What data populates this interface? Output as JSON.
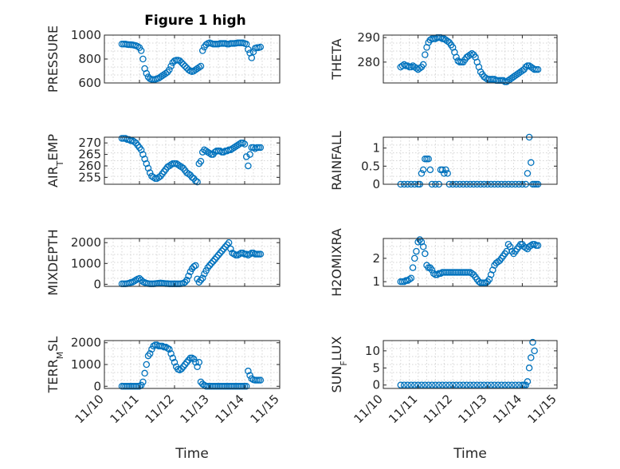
{
  "figure": {
    "title": "Figure 1 high",
    "xlabel": "Time",
    "colors": {
      "series": "#0072BD",
      "axis": "#262626",
      "grid": "#d5d5d5"
    }
  },
  "chart_data": [
    {
      "type": "scatter",
      "ylabel": "PRESSURE",
      "ylim": [
        600,
        1000
      ],
      "xlim": [
        0,
        5
      ],
      "grid": true,
      "yticks": [
        600,
        800,
        1000
      ],
      "yticklabels": [
        "600",
        "800",
        "1000"
      ],
      "xticks": [],
      "x": [
        0.5,
        0.55,
        0.6,
        0.65,
        0.7,
        0.75,
        0.8,
        0.85,
        0.9,
        0.95,
        1.0,
        1.05,
        1.1,
        1.15,
        1.2,
        1.25,
        1.3,
        1.35,
        1.4,
        1.45,
        1.5,
        1.55,
        1.6,
        1.65,
        1.7,
        1.75,
        1.8,
        1.85,
        1.9,
        1.95,
        2.0,
        2.05,
        2.1,
        2.15,
        2.2,
        2.25,
        2.3,
        2.35,
        2.4,
        2.45,
        2.5,
        2.55,
        2.6,
        2.65,
        2.7,
        2.75,
        2.8,
        2.85,
        2.9,
        2.95,
        3.0,
        3.05,
        3.1,
        3.15,
        3.2,
        3.25,
        3.3,
        3.35,
        3.4,
        3.45,
        3.5,
        3.55,
        3.6,
        3.65,
        3.7,
        3.75,
        3.8,
        3.85,
        3.9,
        3.95,
        4.0,
        4.05,
        4.1,
        4.15,
        4.2,
        4.25,
        4.3,
        4.35,
        4.4,
        4.45
      ],
      "y": [
        925,
        925,
        925,
        922,
        920,
        920,
        918,
        915,
        912,
        905,
        895,
        870,
        800,
        720,
        680,
        650,
        635,
        630,
        628,
        630,
        635,
        640,
        650,
        660,
        670,
        680,
        690,
        710,
        740,
        770,
        785,
        790,
        790,
        785,
        770,
        755,
        740,
        725,
        710,
        700,
        695,
        700,
        710,
        720,
        730,
        740,
        870,
        900,
        920,
        930,
        935,
        930,
        925,
        925,
        925,
        925,
        930,
        930,
        930,
        930,
        925,
        925,
        930,
        930,
        930,
        932,
        935,
        935,
        935,
        935,
        930,
        925,
        880,
        850,
        810,
        860,
        890,
        895,
        895,
        900
      ]
    },
    {
      "type": "scatter",
      "ylabel": "THETA",
      "ylim": [
        271.5,
        291
      ],
      "xlim": [
        0,
        5
      ],
      "grid": true,
      "yticks": [
        280,
        290
      ],
      "yticklabels": [
        "280",
        "290"
      ],
      "xticks": [],
      "x": [
        0.5,
        0.55,
        0.6,
        0.65,
        0.7,
        0.75,
        0.8,
        0.85,
        0.9,
        0.95,
        1.0,
        1.05,
        1.1,
        1.15,
        1.2,
        1.25,
        1.3,
        1.35,
        1.4,
        1.45,
        1.5,
        1.55,
        1.6,
        1.65,
        1.7,
        1.75,
        1.8,
        1.85,
        1.9,
        1.95,
        2.0,
        2.05,
        2.1,
        2.15,
        2.2,
        2.25,
        2.3,
        2.35,
        2.4,
        2.45,
        2.5,
        2.55,
        2.6,
        2.65,
        2.7,
        2.75,
        2.8,
        2.85,
        2.9,
        2.95,
        3.0,
        3.05,
        3.1,
        3.15,
        3.2,
        3.25,
        3.3,
        3.35,
        3.4,
        3.45,
        3.5,
        3.55,
        3.6,
        3.65,
        3.7,
        3.75,
        3.8,
        3.85,
        3.9,
        3.95,
        4.0,
        4.05,
        4.1,
        4.15,
        4.2,
        4.25,
        4.3,
        4.35,
        4.4,
        4.45
      ],
      "y": [
        278,
        278.5,
        279,
        278.5,
        278.5,
        278,
        278,
        278.5,
        278,
        277.5,
        277,
        277.5,
        278,
        279,
        283,
        286,
        288,
        289,
        289.5,
        289.5,
        289.5,
        290,
        290,
        290,
        289.5,
        289.5,
        289,
        288.5,
        288,
        287,
        286,
        284,
        282,
        280.5,
        280,
        280,
        280,
        281,
        282,
        282.5,
        283,
        283.5,
        283,
        282,
        280,
        278,
        276,
        275,
        274,
        273.5,
        273,
        273,
        273,
        273,
        273,
        272.5,
        272.5,
        272.5,
        272.5,
        272.5,
        272,
        272,
        272.5,
        273,
        273.5,
        274,
        274.5,
        275,
        275.5,
        276,
        276.5,
        277,
        278,
        278.5,
        278.5,
        278,
        277.5,
        277,
        277,
        277
      ]
    },
    {
      "type": "scatter",
      "ylabel": "AIR_TEMP",
      "ylim": [
        252,
        272.5
      ],
      "xlim": [
        0,
        5
      ],
      "grid": true,
      "yticks": [
        255,
        260,
        265,
        270
      ],
      "yticklabels": [
        "255",
        "260",
        "265",
        "270"
      ],
      "xticks": [],
      "x": [
        0.5,
        0.55,
        0.6,
        0.65,
        0.7,
        0.75,
        0.8,
        0.85,
        0.9,
        0.95,
        1.0,
        1.05,
        1.1,
        1.15,
        1.2,
        1.25,
        1.3,
        1.35,
        1.4,
        1.45,
        1.5,
        1.55,
        1.6,
        1.65,
        1.7,
        1.75,
        1.8,
        1.85,
        1.9,
        1.95,
        2.0,
        2.05,
        2.1,
        2.15,
        2.2,
        2.25,
        2.3,
        2.35,
        2.4,
        2.45,
        2.5,
        2.55,
        2.6,
        2.65,
        2.7,
        2.75,
        2.8,
        2.85,
        2.9,
        2.95,
        3.0,
        3.05,
        3.1,
        3.15,
        3.2,
        3.25,
        3.3,
        3.35,
        3.4,
        3.45,
        3.5,
        3.55,
        3.6,
        3.65,
        3.7,
        3.75,
        3.8,
        3.85,
        3.9,
        3.95,
        4.0,
        4.05,
        4.1,
        4.15,
        4.2,
        4.25,
        4.3,
        4.35,
        4.4,
        4.45
      ],
      "y": [
        272,
        272,
        272,
        271.5,
        271.5,
        271,
        271,
        270.5,
        270,
        269,
        268,
        267,
        265,
        263,
        261,
        259,
        257,
        255.5,
        255,
        254.5,
        254.5,
        255,
        255.5,
        256.5,
        257.5,
        258.5,
        259.5,
        260,
        260.5,
        261,
        261,
        261,
        260.5,
        260,
        259.5,
        259,
        258,
        257,
        256.5,
        256,
        255,
        254.5,
        253.5,
        253,
        261,
        262,
        266,
        267,
        266.5,
        266,
        265.5,
        265,
        265,
        266,
        266.5,
        266.5,
        266.5,
        266,
        266,
        266.5,
        266.5,
        267,
        267,
        267.5,
        268,
        268.5,
        269,
        269.5,
        270,
        270,
        269.5,
        264,
        260,
        265,
        268,
        268,
        267.5,
        268,
        268,
        268
      ]
    },
    {
      "type": "scatter",
      "ylabel": "RAINFALL",
      "ylim": [
        0,
        1.3
      ],
      "xlim": [
        0,
        5
      ],
      "grid": true,
      "yticks": [
        0,
        0.5,
        1
      ],
      "yticklabels": [
        "0",
        "0.5",
        "1"
      ],
      "xticks": [],
      "x": [
        0.5,
        0.6,
        0.7,
        0.8,
        0.9,
        1.0,
        1.05,
        1.1,
        1.15,
        1.2,
        1.25,
        1.3,
        1.35,
        1.4,
        1.5,
        1.6,
        1.65,
        1.7,
        1.75,
        1.8,
        1.85,
        1.9,
        2.0,
        2.1,
        2.2,
        2.3,
        2.4,
        2.5,
        2.6,
        2.7,
        2.8,
        2.9,
        3.0,
        3.1,
        3.2,
        3.3,
        3.4,
        3.5,
        3.6,
        3.7,
        3.8,
        3.9,
        4.0,
        4.1,
        4.15,
        4.2,
        4.25,
        4.3,
        4.35,
        4.4,
        4.45
      ],
      "y": [
        0,
        0,
        0,
        0,
        0,
        0,
        0,
        0.3,
        0.4,
        0.7,
        0.7,
        0.7,
        0.4,
        0,
        0,
        0,
        0.4,
        0.4,
        0.3,
        0.4,
        0.3,
        0,
        0,
        0,
        0,
        0,
        0,
        0,
        0,
        0,
        0,
        0,
        0,
        0,
        0,
        0,
        0,
        0,
        0,
        0,
        0,
        0,
        0,
        0,
        0.3,
        1.3,
        0.6,
        0,
        0,
        0,
        0
      ]
    },
    {
      "type": "scatter",
      "ylabel": "MIXDEPTH",
      "ylim": [
        -100,
        2200
      ],
      "xlim": [
        0,
        5
      ],
      "grid": true,
      "yticks": [
        0,
        1000,
        2000
      ],
      "yticklabels": [
        "0",
        "1000",
        "2000"
      ],
      "xticks": [],
      "x": [
        0.5,
        0.55,
        0.6,
        0.65,
        0.7,
        0.75,
        0.8,
        0.85,
        0.9,
        0.95,
        1.0,
        1.05,
        1.1,
        1.15,
        1.2,
        1.25,
        1.3,
        1.35,
        1.4,
        1.45,
        1.5,
        1.55,
        1.6,
        1.65,
        1.7,
        1.75,
        1.8,
        1.85,
        1.9,
        1.95,
        2.0,
        2.05,
        2.1,
        2.15,
        2.2,
        2.25,
        2.3,
        2.35,
        2.4,
        2.45,
        2.5,
        2.55,
        2.6,
        2.65,
        2.7,
        2.75,
        2.8,
        2.85,
        2.9,
        2.95,
        3.0,
        3.05,
        3.1,
        3.15,
        3.2,
        3.25,
        3.3,
        3.35,
        3.4,
        3.45,
        3.5,
        3.55,
        3.6,
        3.65,
        3.7,
        3.75,
        3.8,
        3.85,
        3.9,
        3.95,
        4.0,
        4.05,
        4.1,
        4.15,
        4.2,
        4.25,
        4.3,
        4.35,
        4.4,
        4.45
      ],
      "y": [
        20,
        20,
        20,
        30,
        50,
        80,
        100,
        150,
        200,
        250,
        280,
        200,
        120,
        80,
        50,
        30,
        20,
        20,
        20,
        30,
        40,
        50,
        60,
        50,
        40,
        30,
        30,
        20,
        20,
        20,
        20,
        20,
        20,
        20,
        30,
        50,
        100,
        200,
        400,
        600,
        750,
        850,
        900,
        250,
        100,
        200,
        300,
        500,
        650,
        800,
        900,
        1000,
        1100,
        1200,
        1300,
        1400,
        1500,
        1600,
        1700,
        1800,
        1900,
        2000,
        1700,
        1500,
        1450,
        1400,
        1400,
        1450,
        1500,
        1500,
        1450,
        1450,
        1400,
        1450,
        1500,
        1500,
        1450,
        1450,
        1450,
        1450
      ]
    },
    {
      "type": "scatter",
      "ylabel": "H2OMIXRA",
      "ylim": [
        0.8,
        2.85
      ],
      "xlim": [
        0,
        5
      ],
      "grid": true,
      "yticks": [
        1,
        2
      ],
      "yticklabels": [
        "1",
        "2"
      ],
      "xticks": [],
      "x": [
        0.5,
        0.55,
        0.6,
        0.65,
        0.7,
        0.75,
        0.8,
        0.85,
        0.9,
        0.95,
        1.0,
        1.05,
        1.1,
        1.15,
        1.2,
        1.25,
        1.3,
        1.35,
        1.4,
        1.45,
        1.5,
        1.55,
        1.6,
        1.65,
        1.7,
        1.75,
        1.8,
        1.85,
        1.9,
        1.95,
        2.0,
        2.05,
        2.1,
        2.15,
        2.2,
        2.25,
        2.3,
        2.35,
        2.4,
        2.45,
        2.5,
        2.55,
        2.6,
        2.65,
        2.7,
        2.75,
        2.8,
        2.85,
        2.9,
        2.95,
        3.0,
        3.05,
        3.1,
        3.15,
        3.2,
        3.25,
        3.3,
        3.35,
        3.4,
        3.45,
        3.5,
        3.55,
        3.6,
        3.65,
        3.7,
        3.75,
        3.8,
        3.85,
        3.9,
        3.95,
        4.0,
        4.05,
        4.1,
        4.15,
        4.2,
        4.25,
        4.3,
        4.35,
        4.4,
        4.45
      ],
      "y": [
        1,
        1,
        1,
        1.05,
        1.05,
        1.1,
        1.15,
        1.6,
        2,
        2.3,
        2.7,
        2.8,
        2.7,
        2.5,
        2.2,
        1.7,
        1.6,
        1.6,
        1.5,
        1.35,
        1.3,
        1.3,
        1.35,
        1.35,
        1.4,
        1.4,
        1.4,
        1.4,
        1.4,
        1.4,
        1.4,
        1.4,
        1.4,
        1.4,
        1.4,
        1.4,
        1.4,
        1.4,
        1.4,
        1.4,
        1.4,
        1.35,
        1.3,
        1.2,
        1.1,
        1,
        0.95,
        0.95,
        0.95,
        0.95,
        1,
        1.1,
        1.3,
        1.5,
        1.7,
        1.8,
        1.85,
        1.9,
        2,
        2.1,
        2.2,
        2.3,
        2.6,
        2.5,
        2.3,
        2.2,
        2.3,
        2.4,
        2.5,
        2.6,
        2.6,
        2.5,
        2.45,
        2.4,
        2.5,
        2.55,
        2.6,
        2.6,
        2.55,
        2.55
      ]
    },
    {
      "type": "scatter",
      "ylabel": "TERR_MSL",
      "ylim": [
        -100,
        2100
      ],
      "xlim": [
        0,
        5
      ],
      "grid": true,
      "yticks": [
        0,
        1000,
        2000
      ],
      "yticklabels": [
        "0",
        "1000",
        "2000"
      ],
      "xticks": [
        0,
        1,
        2,
        3,
        4,
        5
      ],
      "xticklabels": [
        "11/10",
        "11/11",
        "11/12",
        "11/13",
        "11/14",
        "11/15"
      ],
      "x": [
        0.5,
        0.55,
        0.6,
        0.65,
        0.7,
        0.75,
        0.8,
        0.85,
        0.9,
        0.95,
        1.0,
        1.05,
        1.1,
        1.15,
        1.2,
        1.25,
        1.3,
        1.35,
        1.4,
        1.45,
        1.5,
        1.55,
        1.6,
        1.65,
        1.7,
        1.75,
        1.8,
        1.85,
        1.9,
        1.95,
        2.0,
        2.05,
        2.1,
        2.15,
        2.2,
        2.25,
        2.3,
        2.35,
        2.4,
        2.45,
        2.5,
        2.55,
        2.6,
        2.65,
        2.7,
        2.75,
        2.8,
        2.85,
        2.9,
        2.95,
        3.0,
        3.05,
        3.1,
        3.15,
        3.2,
        3.25,
        3.3,
        3.35,
        3.4,
        3.45,
        3.5,
        3.55,
        3.6,
        3.65,
        3.7,
        3.75,
        3.8,
        3.85,
        3.9,
        3.95,
        4.0,
        4.05,
        4.1,
        4.15,
        4.2,
        4.25,
        4.3,
        4.35,
        4.4,
        4.45
      ],
      "y": [
        0,
        0,
        0,
        0,
        0,
        0,
        0,
        0,
        0,
        0,
        0,
        50,
        200,
        600,
        1000,
        1400,
        1500,
        1700,
        1850,
        1900,
        1900,
        1850,
        1850,
        1850,
        1800,
        1800,
        1750,
        1700,
        1500,
        1300,
        1100,
        900,
        780,
        750,
        800,
        900,
        1000,
        1100,
        1200,
        1300,
        1300,
        1250,
        1100,
        900,
        1100,
        200,
        100,
        50,
        0,
        0,
        0,
        0,
        0,
        0,
        0,
        0,
        0,
        0,
        0,
        0,
        0,
        0,
        0,
        0,
        0,
        0,
        0,
        0,
        0,
        0,
        0,
        0,
        700,
        500,
        350,
        300,
        280,
        280,
        280,
        280
      ]
    },
    {
      "type": "scatter",
      "ylabel": "SUN_FLUX",
      "ylim": [
        -1,
        13
      ],
      "xlim": [
        0,
        5
      ],
      "grid": true,
      "yticks": [
        0,
        5,
        10
      ],
      "yticklabels": [
        "0",
        "5",
        "10"
      ],
      "xticks": [
        0,
        1,
        2,
        3,
        4,
        5
      ],
      "xticklabels": [
        "11/10",
        "11/11",
        "11/12",
        "11/13",
        "11/14",
        "11/15"
      ],
      "x": [
        0.5,
        0.6,
        0.7,
        0.8,
        0.9,
        1.0,
        1.1,
        1.2,
        1.3,
        1.4,
        1.5,
        1.6,
        1.7,
        1.8,
        1.9,
        2.0,
        2.1,
        2.2,
        2.3,
        2.4,
        2.5,
        2.6,
        2.7,
        2.8,
        2.9,
        3.0,
        3.1,
        3.2,
        3.3,
        3.4,
        3.5,
        3.6,
        3.7,
        3.8,
        3.9,
        4.0,
        4.05,
        4.1,
        4.15,
        4.2,
        4.25,
        4.3,
        4.35
      ],
      "y": [
        0,
        0,
        0,
        0,
        0,
        0,
        0,
        0,
        0,
        0,
        0,
        0,
        0,
        0,
        0,
        0,
        0,
        0,
        0,
        0,
        0,
        0,
        0,
        0,
        0,
        0,
        0,
        0,
        0,
        0,
        0,
        0,
        0,
        0,
        0,
        0,
        0,
        0,
        1,
        5,
        8,
        12.5,
        10
      ]
    }
  ]
}
